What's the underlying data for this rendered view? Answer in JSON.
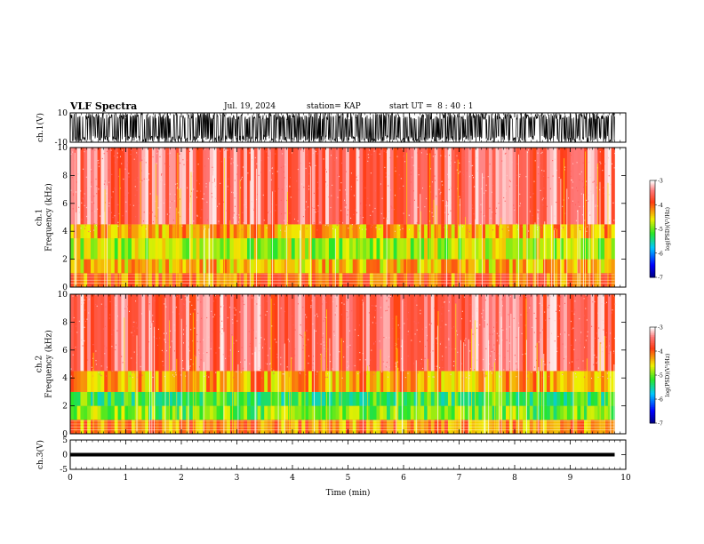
{
  "header": {
    "title": "VLF Spectra",
    "date": "Jul. 19, 2024",
    "station": "station= KAP",
    "start": "start UT =  8 : 40 : 1"
  },
  "chart_data": [
    {
      "type": "line",
      "panel": "ch1-waveform",
      "ylabel": "ch.1(V)",
      "yticks": [
        "10",
        "-10"
      ],
      "ylim": [
        -10,
        10
      ],
      "xlim": [
        0,
        10
      ],
      "data_extent_min": 9.8,
      "description_values": {
        "amplitude_range_V": [
          -10,
          10
        ]
      }
    },
    {
      "type": "heatmap",
      "panel": "ch1-spectrogram",
      "ylabel": "ch.1\nFrequency (kHz)",
      "ylabel_line1": "ch.1",
      "ylabel_line2": "Frequency (kHz)",
      "yticks": [
        "0",
        "2",
        "4",
        "6",
        "8",
        "10"
      ],
      "ylim": [
        0,
        10
      ],
      "xlim": [
        0,
        10
      ],
      "data_extent_min": 9.8,
      "colorbar": {
        "label": "log(PSD)(V²/Hz)",
        "ticks": [
          "-3",
          "-4",
          "-5",
          "-6",
          "-7"
        ],
        "range": [
          -7,
          -3
        ]
      },
      "bands_kHz_log_psd": [
        {
          "f0": 0,
          "f1": 1,
          "value": -4.1
        },
        {
          "f0": 1,
          "f1": 2,
          "value": -4.4
        },
        {
          "f0": 2,
          "f1": 3.5,
          "value": -4.8
        },
        {
          "f0": 3.5,
          "f1": 4.5,
          "value": -4.3
        },
        {
          "f0": 4.5,
          "f1": 10,
          "value": -3.5
        }
      ]
    },
    {
      "type": "heatmap",
      "panel": "ch2-spectrogram",
      "ylabel": "ch.2\nFrequency (kHz)",
      "ylabel_line1": "ch.2",
      "ylabel_line2": "Frequency (kHz)",
      "yticks": [
        "0",
        "2",
        "4",
        "6",
        "8",
        "10"
      ],
      "ylim": [
        0,
        10
      ],
      "xlim": [
        0,
        10
      ],
      "data_extent_min": 9.8,
      "colorbar": {
        "label": "log(PSD)(V²/Hz)",
        "ticks": [
          "-3",
          "-4",
          "-5",
          "-6",
          "-7"
        ],
        "range": [
          -7,
          -3
        ]
      },
      "bands_kHz_log_psd": [
        {
          "f0": 0,
          "f1": 1,
          "value": -4.2
        },
        {
          "f0": 1,
          "f1": 2,
          "value": -5.0
        },
        {
          "f0": 2,
          "f1": 3,
          "value": -5.2
        },
        {
          "f0": 3,
          "f1": 4.5,
          "value": -4.3
        },
        {
          "f0": 4.5,
          "f1": 10,
          "value": -3.5
        }
      ]
    },
    {
      "type": "line",
      "panel": "ch3-waveform",
      "ylabel": "ch.3(V)",
      "yticks": [
        "5",
        "0",
        "-5"
      ],
      "ylim": [
        -5,
        5
      ],
      "xlim": [
        0,
        10
      ],
      "data_extent_min": 9.8,
      "description_values": {
        "amplitude_range_V": [
          -0.6,
          0.6
        ]
      },
      "xlabel": "Time (min)",
      "xticks": [
        "0",
        "1",
        "2",
        "3",
        "4",
        "5",
        "6",
        "7",
        "8",
        "9",
        "10"
      ]
    }
  ],
  "colors": {
    "red": "#ff2020",
    "yellow": "#f0f000",
    "green": "#30e030",
    "axis": "#000000"
  }
}
